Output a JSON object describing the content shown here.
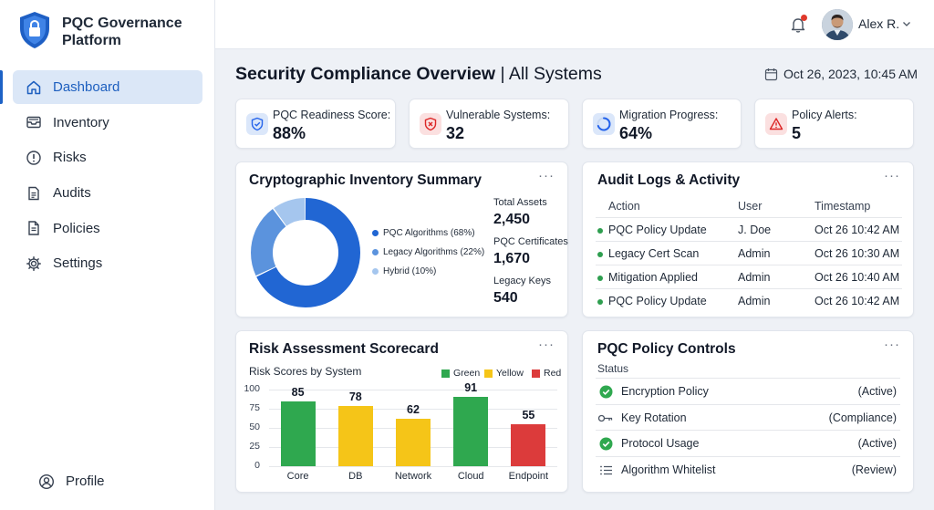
{
  "app": {
    "title": "PQC Governance Platform"
  },
  "sidebar": {
    "items": [
      {
        "label": "Dashboard",
        "icon": "home-icon",
        "active": true
      },
      {
        "label": "Inventory",
        "icon": "inbox-icon"
      },
      {
        "label": "Risks",
        "icon": "alert-circle-icon"
      },
      {
        "label": "Audits",
        "icon": "clipboard-icon"
      },
      {
        "label": "Policies",
        "icon": "document-icon"
      },
      {
        "label": "Settings",
        "icon": "gear-icon"
      }
    ],
    "profile": {
      "label": "Profile",
      "icon": "user-circle-icon"
    }
  },
  "topbar": {
    "user_name": "Alex R.",
    "notifications_unread": true
  },
  "header": {
    "title_bold": "Security Compliance Overview",
    "title_rest": " | All Systems",
    "datetime": "Oct 26, 2023, 10:45 AM"
  },
  "kpis": [
    {
      "label": "PQC Readiness Score:",
      "value": "88%",
      "icon": "shield-check-icon",
      "color": "#2563eb"
    },
    {
      "label": "Vulnerable Systems:",
      "value": "32",
      "icon": "shield-x-icon",
      "color": "#dc2626"
    },
    {
      "label": "Migration Progress:",
      "value": "64%",
      "icon": "progress-ring-icon",
      "color": "#2563eb"
    },
    {
      "label": "Policy Alerts:",
      "value": "5",
      "icon": "warning-triangle-icon",
      "color": "#dc2626"
    }
  ],
  "inventory": {
    "title": "Cryptographic Inventory Summary",
    "donut": [
      {
        "label": "PQC Algorithms (68%)",
        "value": 68,
        "color": "#2166d3"
      },
      {
        "label": "Legacy Algorithms (22%)",
        "value": 22,
        "color": "#5b93dd"
      },
      {
        "label": "Hybrid (10%)",
        "value": 10,
        "color": "#a5c6ee"
      }
    ],
    "stats": [
      {
        "label": "Total Assets",
        "value": "2,450"
      },
      {
        "label": "PQC Certificates",
        "value": "1,670"
      },
      {
        "label": "Legacy Keys",
        "value": "540"
      }
    ]
  },
  "audit": {
    "title": "Audit Logs & Activity",
    "columns": [
      "Action",
      "User",
      "Timestamp"
    ],
    "rows": [
      [
        "PQC Policy Update",
        "J. Doe",
        "Oct 26 10:42 AM"
      ],
      [
        "Legacy Cert Scan",
        "Admin",
        "Oct 26 10:30 AM"
      ],
      [
        "Mitigation Applied",
        "Admin",
        "Oct 26 10:40 AM"
      ],
      [
        "PQC Policy Update",
        "Admin",
        "Oct 26 10:42 AM"
      ]
    ]
  },
  "risk": {
    "title": "Risk Assessment Scorecard",
    "subtitle": "Risk Scores by System",
    "legend": [
      {
        "label": "Green",
        "color": "#2fa84f"
      },
      {
        "label": "Yellow",
        "color": "#f5c518"
      },
      {
        "label": "Red",
        "color": "#dc3b3b"
      }
    ]
  },
  "chart_data": {
    "type": "bar",
    "categories": [
      "Core",
      "DB",
      "Network",
      "Cloud",
      "Endpoint"
    ],
    "values": [
      85,
      78,
      62,
      91,
      55
    ],
    "colors": [
      "#2fa84f",
      "#f5c518",
      "#f5c518",
      "#2fa84f",
      "#dc3b3b"
    ],
    "title": "Risk Scores by System",
    "ylim": [
      0,
      100
    ],
    "yticks": [
      0,
      25,
      50,
      75,
      100
    ],
    "grid": true,
    "legend_position": "top-right"
  },
  "policy": {
    "title": "PQC Policy Controls",
    "status_label": "Status",
    "rows": [
      {
        "name": "Encryption Policy",
        "state": "(Active)",
        "icon": "check-circle-icon"
      },
      {
        "name": "Key Rotation",
        "state": "(Compliance)",
        "icon": "key-icon"
      },
      {
        "name": "Protocol Usage",
        "state": "(Active)",
        "icon": "check-circle-icon"
      },
      {
        "name": "Algorithm Whitelist",
        "state": "(Review)",
        "icon": "list-icon"
      }
    ]
  }
}
